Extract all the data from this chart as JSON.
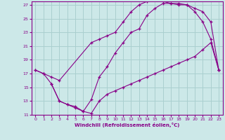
{
  "xlabel": "Windchill (Refroidissement éolien,°C)",
  "background_color": "#cce8e8",
  "grid_color": "#aacfcf",
  "line_color": "#880088",
  "xlim": [
    -0.5,
    23.5
  ],
  "ylim": [
    11,
    27.5
  ],
  "xticks": [
    0,
    1,
    2,
    3,
    4,
    5,
    6,
    7,
    8,
    9,
    10,
    11,
    12,
    13,
    14,
    15,
    16,
    17,
    18,
    19,
    20,
    21,
    22,
    23
  ],
  "yticks": [
    11,
    13,
    15,
    17,
    19,
    21,
    23,
    25,
    27
  ],
  "line1_x": [
    0,
    1,
    2,
    3,
    4,
    5,
    6,
    7,
    8,
    9,
    10,
    11,
    12,
    13,
    14,
    15,
    16,
    17,
    18,
    19,
    20,
    21,
    22,
    23
  ],
  "line1_y": [
    17.5,
    17.0,
    15.5,
    13.0,
    12.5,
    12.2,
    11.5,
    13.2,
    16.5,
    18.0,
    20.0,
    21.5,
    23.0,
    23.5,
    25.5,
    26.5,
    27.2,
    27.2,
    27.2,
    27.0,
    26.0,
    24.5,
    22.0,
    17.5
  ],
  "line2_x": [
    0,
    1,
    2,
    3,
    7,
    8,
    9,
    10,
    11,
    12,
    13,
    14,
    15,
    16,
    17,
    18,
    19,
    20,
    21,
    22,
    23
  ],
  "line2_y": [
    17.5,
    17.0,
    16.5,
    16.0,
    21.5,
    22.0,
    22.5,
    23.0,
    24.5,
    26.0,
    27.0,
    27.5,
    27.8,
    27.5,
    27.2,
    27.0,
    27.0,
    26.5,
    26.0,
    24.5,
    17.5
  ],
  "line3_x": [
    2,
    3,
    4,
    5,
    6,
    7,
    8,
    9,
    10,
    11,
    12,
    13,
    14,
    15,
    16,
    17,
    18,
    19,
    20,
    21,
    22,
    23
  ],
  "line3_y": [
    15.5,
    13.0,
    12.5,
    12.0,
    11.5,
    11.2,
    13.0,
    14.0,
    14.5,
    15.0,
    15.5,
    16.0,
    16.5,
    17.0,
    17.5,
    18.0,
    18.5,
    19.0,
    19.5,
    20.5,
    21.5,
    17.5
  ]
}
